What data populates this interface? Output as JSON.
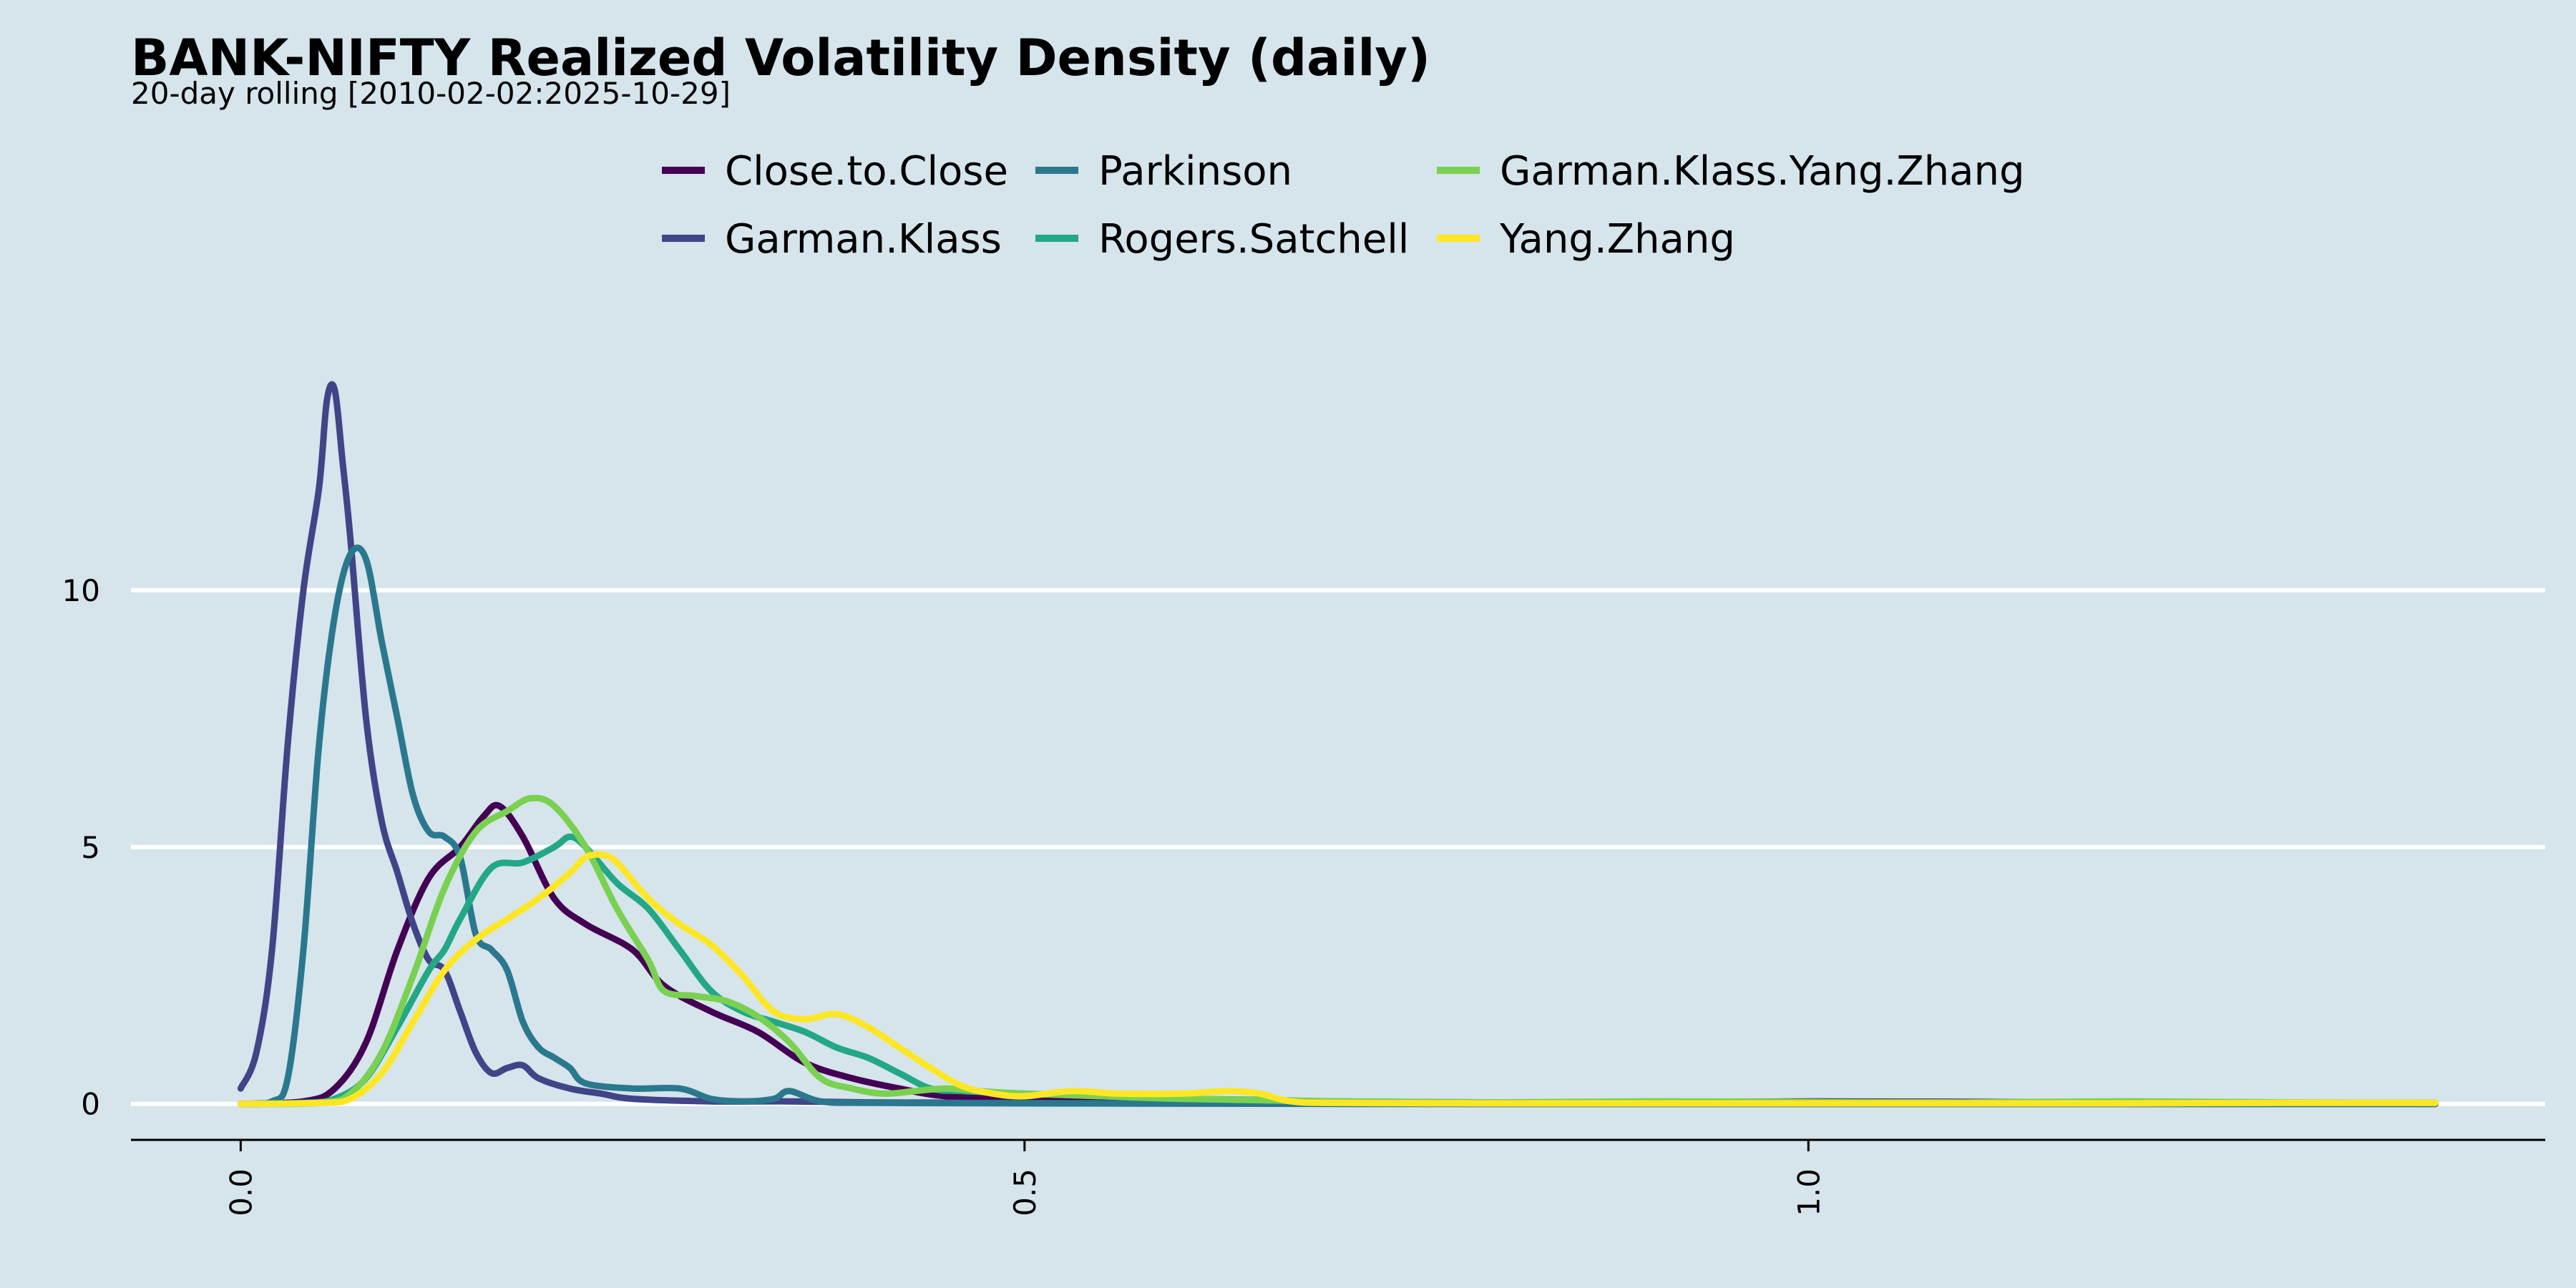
{
  "chart_data": {
    "type": "line",
    "title": "BANK-NIFTY Realized Volatility Density (daily)",
    "subtitle": "20-day rolling [2010-02-02:2025-10-29]",
    "xlabel": "",
    "ylabel": "",
    "xlim": [
      -0.07,
      1.47
    ],
    "ylim": [
      -0.7,
      15.5
    ],
    "x_ticks": [
      {
        "value": 0.0,
        "label": "0.0"
      },
      {
        "value": 0.5,
        "label": "0.5"
      },
      {
        "value": 1.0,
        "label": "1.0"
      }
    ],
    "y_ticks": [
      {
        "value": 0,
        "label": "0"
      },
      {
        "value": 5,
        "label": "5"
      },
      {
        "value": 10,
        "label": "10"
      }
    ],
    "grid": "horizontal",
    "legend_position": "top",
    "series": [
      {
        "name": "Close.to.Close",
        "color": "#440154",
        "points": [
          [
            0.0,
            0
          ],
          [
            0.04,
            0.05
          ],
          [
            0.06,
            0.3
          ],
          [
            0.08,
            1.2
          ],
          [
            0.1,
            3.0
          ],
          [
            0.12,
            4.4
          ],
          [
            0.14,
            5.0
          ],
          [
            0.155,
            5.6
          ],
          [
            0.165,
            5.8
          ],
          [
            0.18,
            5.2
          ],
          [
            0.2,
            4.0
          ],
          [
            0.22,
            3.5
          ],
          [
            0.25,
            3.0
          ],
          [
            0.27,
            2.3
          ],
          [
            0.3,
            1.8
          ],
          [
            0.33,
            1.4
          ],
          [
            0.36,
            0.8
          ],
          [
            0.39,
            0.5
          ],
          [
            0.42,
            0.3
          ],
          [
            0.45,
            0.15
          ],
          [
            0.5,
            0.1
          ],
          [
            0.55,
            0.05
          ],
          [
            0.6,
            0.03
          ],
          [
            0.7,
            0.02
          ],
          [
            0.8,
            0.02
          ],
          [
            0.9,
            0.03
          ],
          [
            1.0,
            0.05
          ],
          [
            1.1,
            0.04
          ],
          [
            1.2,
            0.03
          ],
          [
            1.3,
            0.02
          ],
          [
            1.4,
            0.02
          ]
        ]
      },
      {
        "name": "Garman.Klass",
        "color": "#414487",
        "points": [
          [
            0.0,
            0.3
          ],
          [
            0.01,
            1.0
          ],
          [
            0.02,
            3.0
          ],
          [
            0.03,
            7.0
          ],
          [
            0.04,
            10.0
          ],
          [
            0.05,
            12.0
          ],
          [
            0.055,
            13.7
          ],
          [
            0.06,
            13.9
          ],
          [
            0.065,
            12.5
          ],
          [
            0.07,
            11.0
          ],
          [
            0.08,
            7.5
          ],
          [
            0.09,
            5.5
          ],
          [
            0.1,
            4.5
          ],
          [
            0.11,
            3.5
          ],
          [
            0.12,
            2.8
          ],
          [
            0.13,
            2.6
          ],
          [
            0.14,
            1.8
          ],
          [
            0.15,
            1.0
          ],
          [
            0.16,
            0.6
          ],
          [
            0.17,
            0.7
          ],
          [
            0.18,
            0.75
          ],
          [
            0.19,
            0.5
          ],
          [
            0.21,
            0.3
          ],
          [
            0.23,
            0.2
          ],
          [
            0.25,
            0.1
          ],
          [
            0.3,
            0.05
          ],
          [
            0.35,
            0.05
          ],
          [
            0.4,
            0.03
          ],
          [
            0.5,
            0.02
          ],
          [
            0.6,
            0.01
          ],
          [
            0.8,
            0.0
          ],
          [
            1.0,
            0.0
          ],
          [
            1.2,
            0.0
          ],
          [
            1.4,
            0.0
          ]
        ]
      },
      {
        "name": "Parkinson",
        "color": "#2a788e",
        "points": [
          [
            0.0,
            0
          ],
          [
            0.02,
            0.05
          ],
          [
            0.03,
            0.5
          ],
          [
            0.04,
            3.0
          ],
          [
            0.05,
            7.0
          ],
          [
            0.06,
            9.5
          ],
          [
            0.07,
            10.7
          ],
          [
            0.08,
            10.6
          ],
          [
            0.09,
            9.0
          ],
          [
            0.1,
            7.5
          ],
          [
            0.11,
            6.0
          ],
          [
            0.12,
            5.3
          ],
          [
            0.13,
            5.2
          ],
          [
            0.14,
            4.8
          ],
          [
            0.15,
            3.3
          ],
          [
            0.16,
            3.0
          ],
          [
            0.17,
            2.6
          ],
          [
            0.18,
            1.6
          ],
          [
            0.19,
            1.1
          ],
          [
            0.2,
            0.9
          ],
          [
            0.21,
            0.7
          ],
          [
            0.22,
            0.4
          ],
          [
            0.25,
            0.3
          ],
          [
            0.28,
            0.3
          ],
          [
            0.3,
            0.1
          ],
          [
            0.32,
            0.05
          ],
          [
            0.34,
            0.1
          ],
          [
            0.35,
            0.25
          ],
          [
            0.37,
            0.05
          ],
          [
            0.4,
            0.02
          ],
          [
            0.5,
            0.01
          ],
          [
            0.7,
            0.0
          ],
          [
            1.0,
            0.0
          ],
          [
            1.4,
            0.0
          ]
        ]
      },
      {
        "name": "Rogers.Satchell",
        "color": "#22a884",
        "points": [
          [
            0.0,
            0
          ],
          [
            0.04,
            0.02
          ],
          [
            0.06,
            0.1
          ],
          [
            0.08,
            0.5
          ],
          [
            0.1,
            1.5
          ],
          [
            0.12,
            2.6
          ],
          [
            0.13,
            3.0
          ],
          [
            0.14,
            3.6
          ],
          [
            0.16,
            4.6
          ],
          [
            0.18,
            4.7
          ],
          [
            0.2,
            5.0
          ],
          [
            0.21,
            5.2
          ],
          [
            0.22,
            5.0
          ],
          [
            0.24,
            4.3
          ],
          [
            0.26,
            3.8
          ],
          [
            0.28,
            3.0
          ],
          [
            0.3,
            2.2
          ],
          [
            0.32,
            1.8
          ],
          [
            0.34,
            1.6
          ],
          [
            0.36,
            1.4
          ],
          [
            0.38,
            1.1
          ],
          [
            0.4,
            0.9
          ],
          [
            0.42,
            0.6
          ],
          [
            0.44,
            0.3
          ],
          [
            0.46,
            0.25
          ],
          [
            0.5,
            0.2
          ],
          [
            0.55,
            0.15
          ],
          [
            0.6,
            0.1
          ],
          [
            0.65,
            0.08
          ],
          [
            0.7,
            0.05
          ],
          [
            0.8,
            0.03
          ],
          [
            0.9,
            0.02
          ],
          [
            1.0,
            0.02
          ],
          [
            1.1,
            0.02
          ],
          [
            1.2,
            0.02
          ],
          [
            1.3,
            0.02
          ],
          [
            1.4,
            0.02
          ]
        ]
      },
      {
        "name": "Garman.Klass.Yang.Zhang",
        "color": "#7ad151",
        "points": [
          [
            0.0,
            0
          ],
          [
            0.05,
            0.02
          ],
          [
            0.07,
            0.2
          ],
          [
            0.09,
            1.0
          ],
          [
            0.11,
            2.5
          ],
          [
            0.13,
            4.2
          ],
          [
            0.15,
            5.3
          ],
          [
            0.17,
            5.7
          ],
          [
            0.185,
            5.95
          ],
          [
            0.2,
            5.8
          ],
          [
            0.22,
            5.0
          ],
          [
            0.24,
            3.8
          ],
          [
            0.26,
            2.8
          ],
          [
            0.27,
            2.2
          ],
          [
            0.29,
            2.1
          ],
          [
            0.31,
            2.0
          ],
          [
            0.33,
            1.7
          ],
          [
            0.35,
            1.2
          ],
          [
            0.37,
            0.5
          ],
          [
            0.39,
            0.3
          ],
          [
            0.41,
            0.2
          ],
          [
            0.43,
            0.25
          ],
          [
            0.45,
            0.3
          ],
          [
            0.47,
            0.25
          ],
          [
            0.5,
            0.2
          ],
          [
            0.55,
            0.15
          ],
          [
            0.6,
            0.1
          ],
          [
            0.7,
            0.05
          ],
          [
            0.8,
            0.03
          ],
          [
            0.9,
            0.05
          ],
          [
            1.0,
            0.04
          ],
          [
            1.1,
            0.03
          ],
          [
            1.2,
            0.05
          ],
          [
            1.3,
            0.03
          ],
          [
            1.4,
            0.02
          ]
        ]
      },
      {
        "name": "Yang.Zhang",
        "color": "#fde725",
        "points": [
          [
            0.0,
            0
          ],
          [
            0.05,
            0.02
          ],
          [
            0.07,
            0.1
          ],
          [
            0.09,
            0.6
          ],
          [
            0.11,
            1.6
          ],
          [
            0.13,
            2.6
          ],
          [
            0.15,
            3.2
          ],
          [
            0.17,
            3.6
          ],
          [
            0.19,
            4.0
          ],
          [
            0.21,
            4.5
          ],
          [
            0.22,
            4.8
          ],
          [
            0.23,
            4.85
          ],
          [
            0.24,
            4.7
          ],
          [
            0.26,
            4.0
          ],
          [
            0.28,
            3.5
          ],
          [
            0.3,
            3.1
          ],
          [
            0.32,
            2.5
          ],
          [
            0.34,
            1.8
          ],
          [
            0.36,
            1.65
          ],
          [
            0.38,
            1.75
          ],
          [
            0.4,
            1.5
          ],
          [
            0.42,
            1.1
          ],
          [
            0.44,
            0.7
          ],
          [
            0.46,
            0.35
          ],
          [
            0.48,
            0.2
          ],
          [
            0.5,
            0.15
          ],
          [
            0.53,
            0.25
          ],
          [
            0.56,
            0.2
          ],
          [
            0.6,
            0.2
          ],
          [
            0.63,
            0.25
          ],
          [
            0.65,
            0.2
          ],
          [
            0.67,
            0.05
          ],
          [
            0.7,
            0.02
          ],
          [
            0.8,
            0.01
          ],
          [
            0.9,
            0.01
          ],
          [
            1.0,
            0.01
          ],
          [
            1.1,
            0.01
          ],
          [
            1.2,
            0.01
          ],
          [
            1.3,
            0.02
          ],
          [
            1.4,
            0.02
          ]
        ]
      }
    ]
  }
}
